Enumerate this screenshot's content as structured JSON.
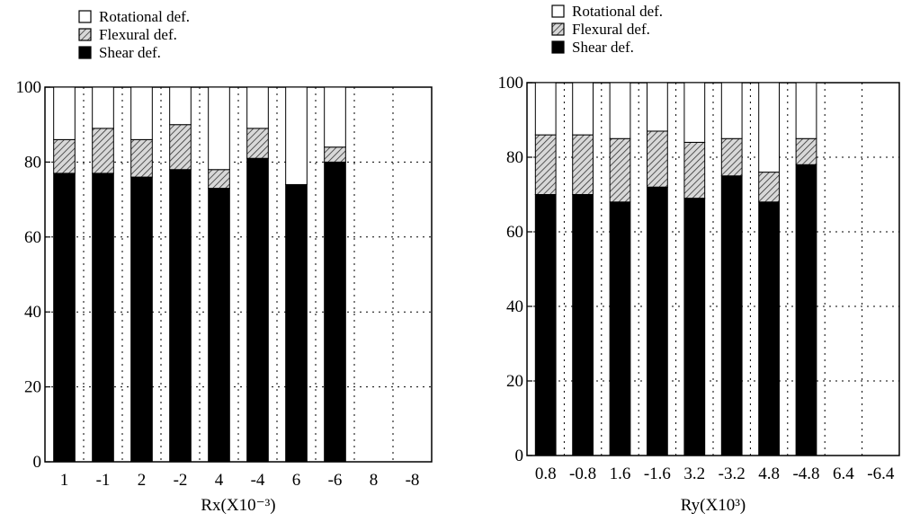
{
  "chart_data": [
    {
      "type": "bar",
      "stacked": true,
      "xlabel": "Rx(X10⁻³)",
      "ylabel": "",
      "ylim": [
        0,
        100
      ],
      "yticks": [
        0,
        20,
        40,
        60,
        80,
        100
      ],
      "grid": true,
      "legend_placement": "top-left, above plot",
      "categories": [
        "1",
        "-1",
        "2",
        "-2",
        "4",
        "-4",
        "6",
        "-6",
        "8",
        "-8"
      ],
      "series": [
        {
          "name": "Shear def.",
          "color": "#000000",
          "pattern": "solid",
          "values": [
            77,
            77,
            76,
            78,
            73,
            81,
            74,
            80,
            0,
            0
          ]
        },
        {
          "name": "Flexural def.",
          "color": "#b0b0b0",
          "pattern": "hatch",
          "values": [
            9,
            12,
            10,
            12,
            5,
            8,
            0,
            4,
            0,
            0
          ]
        },
        {
          "name": "Rotational def.",
          "color": "#ffffff",
          "pattern": "empty",
          "values": [
            14,
            11,
            14,
            10,
            22,
            11,
            26,
            16,
            0,
            0
          ]
        }
      ]
    },
    {
      "type": "bar",
      "stacked": true,
      "xlabel": "Ry(X10³)",
      "ylabel": "",
      "ylim": [
        0,
        100
      ],
      "yticks": [
        0,
        20,
        40,
        60,
        80,
        100
      ],
      "grid": true,
      "legend_placement": "top-left, above plot",
      "categories": [
        "0.8",
        "-0.8",
        "1.6",
        "-1.6",
        "3.2",
        "-3.2",
        "4.8",
        "-4.8",
        "6.4",
        "-6.4"
      ],
      "series": [
        {
          "name": "Shear def.",
          "color": "#000000",
          "pattern": "solid",
          "values": [
            70,
            70,
            68,
            72,
            69,
            75,
            68,
            78,
            0,
            0
          ]
        },
        {
          "name": "Flexural def.",
          "color": "#b0b0b0",
          "pattern": "hatch",
          "values": [
            16,
            16,
            17,
            15,
            15,
            10,
            8,
            7,
            0,
            0
          ]
        },
        {
          "name": "Rotational def.",
          "color": "#ffffff",
          "pattern": "empty",
          "values": [
            14,
            14,
            15,
            13,
            16,
            15,
            24,
            15,
            0,
            0
          ]
        }
      ]
    }
  ]
}
